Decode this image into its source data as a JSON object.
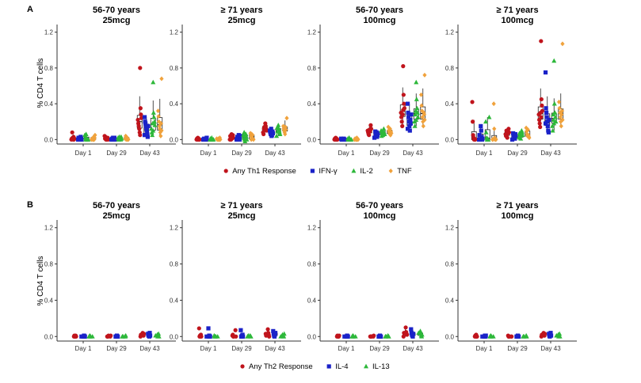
{
  "chart_data": [
    {
      "panel": "A",
      "type": "scatter",
      "ylabel": "% CD4 T cells",
      "ylim": [
        -0.05,
        1.25
      ],
      "yticks": [
        0.0,
        0.4,
        0.8,
        1.2
      ],
      "ytick_labels": [
        "0.0",
        "0.4",
        "0.8",
        "1.2"
      ],
      "categories": [
        "Day 1",
        "Day 29",
        "Day 43"
      ],
      "legend_position": "bottom",
      "legend": [
        {
          "name": "Any Th1 Response",
          "marker": "circle",
          "color": "#c0141c"
        },
        {
          "name": "IFN-γ",
          "marker": "square",
          "color": "#1a22c8"
        },
        {
          "name": "IL-2",
          "marker": "triangle",
          "color": "#2db83a"
        },
        {
          "name": "TNF",
          "marker": "diamond",
          "color": "#f0a23c"
        }
      ],
      "facets": [
        {
          "title1": "56-70 years",
          "title2": "25mcg",
          "values": [
            [
              [
                0.0,
                0.01,
                0.08,
                0.02,
                0.0,
                0.03,
                0.0,
                0.01
              ],
              [
                0.0,
                0.0,
                0.03,
                0.01,
                0.0,
                0.0,
                0.02,
                0.0
              ],
              [
                0.0,
                0.05,
                0.02,
                0.0,
                0.06,
                0.01,
                0.0,
                0.0
              ],
              [
                0.0,
                0.0,
                0.03,
                0.0,
                0.02,
                0.05,
                0.0,
                0.01
              ]
            ],
            [
              [
                0.02,
                0.0,
                0.04,
                0.01,
                0.03,
                0.0,
                0.02,
                0.0
              ],
              [
                0.01,
                0.0,
                0.02,
                0.0,
                0.01,
                0.02,
                0.0,
                0.0
              ],
              [
                0.0,
                0.03,
                0.01,
                0.02,
                0.0,
                0.0,
                0.03,
                0.01
              ],
              [
                0.01,
                0.04,
                0.0,
                0.03,
                0.02,
                0.0,
                0.01,
                0.0
              ]
            ],
            [
              [
                0.8,
                0.35,
                0.28,
                0.24,
                0.22,
                0.18,
                0.15,
                0.12,
                0.08,
                0.05
              ],
              [
                0.25,
                0.2,
                0.18,
                0.15,
                0.12,
                0.1,
                0.06,
                0.03,
                0.15,
                0.05
              ],
              [
                0.64,
                0.3,
                0.25,
                0.2,
                0.16,
                0.12,
                0.08,
                0.05,
                0.18,
                0.1
              ],
              [
                0.68,
                0.32,
                0.26,
                0.2,
                0.15,
                0.12,
                0.08,
                0.04,
                0.18,
                0.1
              ]
            ]
          ]
        },
        {
          "title1": "≥ 71 years",
          "title2": "25mcg",
          "values": [
            [
              [
                0.0,
                0.01,
                0.0,
                0.02,
                0.0,
                0.01,
                0.0,
                0.0
              ],
              [
                0.0,
                0.0,
                0.01,
                0.0,
                0.02,
                0.0,
                0.0,
                0.01
              ],
              [
                0.0,
                0.0,
                0.01,
                0.0,
                0.0,
                0.02,
                0.0,
                0.0
              ],
              [
                0.0,
                0.01,
                0.0,
                0.0,
                0.02,
                0.0,
                0.01,
                0.0
              ]
            ],
            [
              [
                0.05,
                0.02,
                0.0,
                0.04,
                0.03,
                0.0,
                0.06,
                0.01
              ],
              [
                0.03,
                0.0,
                0.02,
                0.05,
                0.01,
                0.0,
                0.04,
                0.0
              ],
              [
                0.06,
                0.03,
                0.0,
                0.05,
                0.02,
                0.08,
                0.0,
                -0.02
              ],
              [
                0.07,
                0.04,
                0.0,
                0.06,
                0.02,
                0.05,
                0.01,
                0.0
              ]
            ],
            [
              [
                0.18,
                0.15,
                0.12,
                0.1,
                0.08,
                0.06,
                0.12,
                0.14
              ],
              [
                0.1,
                0.08,
                0.06,
                0.12,
                0.04,
                0.05,
                0.09,
                0.07
              ],
              [
                0.16,
                0.12,
                0.1,
                0.08,
                0.06,
                0.04,
                0.13,
                0.09
              ],
              [
                0.24,
                0.15,
                0.12,
                0.1,
                0.08,
                0.06,
                0.14,
                0.11
              ]
            ]
          ]
        },
        {
          "title1": "56-70 years",
          "title2": "100mcg",
          "values": [
            [
              [
                0.0,
                0.01,
                0.0,
                0.02,
                0.0,
                0.01,
                0.0,
                0.0
              ],
              [
                0.0,
                0.0,
                0.01,
                0.0,
                0.0,
                0.01,
                0.0,
                0.0
              ],
              [
                0.0,
                0.01,
                0.0,
                0.0,
                0.02,
                0.0,
                0.0,
                0.0
              ],
              [
                0.0,
                0.0,
                0.02,
                0.0,
                0.01,
                0.0,
                0.0,
                0.01
              ]
            ],
            [
              [
                0.16,
                0.12,
                0.1,
                0.08,
                0.06,
                0.05,
                0.11,
                0.09
              ],
              [
                0.09,
                0.06,
                0.04,
                0.08,
                0.03,
                0.05,
                0.07,
                0.02
              ],
              [
                0.12,
                0.08,
                0.06,
                0.1,
                0.04,
                0.07,
                0.09,
                0.05
              ],
              [
                0.14,
                0.1,
                0.08,
                0.06,
                0.12,
                0.05,
                0.09,
                0.07
              ]
            ],
            [
              [
                0.82,
                0.5,
                0.4,
                0.35,
                0.3,
                0.25,
                0.2,
                0.15,
                0.28,
                0.33
              ],
              [
                0.4,
                0.3,
                0.25,
                0.2,
                0.15,
                0.1,
                0.22,
                0.18,
                0.28,
                0.12
              ],
              [
                0.64,
                0.45,
                0.35,
                0.3,
                0.25,
                0.2,
                0.15,
                0.28,
                0.32,
                0.22
              ],
              [
                0.72,
                0.5,
                0.38,
                0.32,
                0.25,
                0.2,
                0.15,
                0.3,
                0.28,
                0.22
              ]
            ]
          ]
        },
        {
          "title1": "≥ 71 years",
          "title2": "100mcg",
          "values": [
            [
              [
                0.42,
                0.2,
                0.05,
                0.02,
                0.0,
                0.01,
                0.0,
                0.0
              ],
              [
                0.15,
                0.1,
                0.03,
                0.0,
                0.01,
                0.0,
                0.05,
                0.0
              ],
              [
                0.25,
                0.2,
                0.08,
                0.02,
                0.0,
                0.01,
                0.0,
                0.0
              ],
              [
                0.4,
                0.12,
                0.02,
                0.0,
                0.01,
                0.0,
                0.0,
                0.0
              ]
            ],
            [
              [
                0.12,
                0.08,
                0.06,
                0.04,
                0.1,
                0.05,
                0.02,
                0.07
              ],
              [
                0.07,
                0.05,
                0.02,
                0.04,
                0.01,
                0.06,
                0.03,
                0.0
              ],
              [
                0.1,
                0.08,
                0.05,
                0.03,
                0.07,
                0.02,
                0.04,
                0.01
              ],
              [
                0.13,
                0.09,
                0.06,
                0.04,
                0.11,
                0.05,
                0.03,
                0.02
              ]
            ],
            [
              [
                1.1,
                0.45,
                0.38,
                0.32,
                0.28,
                0.22,
                0.18,
                0.14,
                0.3,
                0.25
              ],
              [
                0.75,
                0.35,
                0.3,
                0.25,
                0.2,
                0.15,
                0.1,
                0.08,
                0.22,
                0.18
              ],
              [
                0.88,
                0.4,
                0.3,
                0.25,
                0.2,
                0.15,
                0.1,
                0.28,
                0.22,
                0.18
              ],
              [
                1.07,
                0.42,
                0.35,
                0.3,
                0.25,
                0.2,
                0.15,
                0.28,
                0.32,
                0.22
              ]
            ]
          ]
        }
      ]
    },
    {
      "panel": "B",
      "type": "scatter",
      "ylabel": "% CD4 T cells",
      "ylim": [
        -0.05,
        1.25
      ],
      "yticks": [
        0.0,
        0.4,
        0.8,
        1.2
      ],
      "ytick_labels": [
        "0.0",
        "0.4",
        "0.8",
        "1.2"
      ],
      "categories": [
        "Day 1",
        "Day 29",
        "Day 43"
      ],
      "legend_position": "bottom",
      "legend": [
        {
          "name": "Any Th2 Response",
          "marker": "circle",
          "color": "#c0141c"
        },
        {
          "name": "IL-4",
          "marker": "square",
          "color": "#1a22c8"
        },
        {
          "name": "IL-13",
          "marker": "triangle",
          "color": "#2db83a"
        }
      ],
      "facets": [
        {
          "title1": "56-70 years",
          "title2": "25mcg",
          "values": [
            [
              [
                0.0,
                0.01,
                0.0,
                0.0,
                0.01,
                0.0
              ],
              [
                0.0,
                0.0,
                0.01,
                0.0,
                0.0,
                0.0
              ],
              [
                0.0,
                0.0,
                0.0,
                0.01,
                0.0,
                0.0
              ]
            ],
            [
              [
                0.0,
                0.01,
                0.0,
                0.0,
                0.0,
                0.01
              ],
              [
                0.0,
                0.0,
                0.0,
                0.01,
                0.0,
                0.0
              ],
              [
                0.0,
                0.0,
                0.01,
                0.0,
                0.0,
                0.0
              ]
            ],
            [
              [
                0.04,
                0.02,
                0.01,
                0.03,
                0.0,
                0.02
              ],
              [
                0.03,
                0.01,
                0.02,
                0.0,
                0.04,
                0.01
              ],
              [
                0.02,
                0.0,
                0.01,
                0.03,
                0.0,
                0.01
              ]
            ]
          ]
        },
        {
          "title1": "≥ 71 years",
          "title2": "25mcg",
          "values": [
            [
              [
                0.09,
                0.0,
                0.01,
                0.0,
                0.02,
                0.0
              ],
              [
                0.09,
                0.0,
                0.01,
                0.0,
                0.0,
                0.0
              ],
              [
                0.0,
                0.01,
                0.0,
                0.0,
                0.0,
                0.0
              ]
            ],
            [
              [
                0.07,
                0.0,
                0.01,
                0.02,
                0.0,
                0.0
              ],
              [
                0.07,
                0.0,
                0.0,
                0.01,
                0.02,
                0.0
              ],
              [
                0.01,
                0.0,
                0.0,
                0.0,
                0.0,
                0.01
              ]
            ],
            [
              [
                0.08,
                0.04,
                0.02,
                0.0,
                0.03,
                0.01
              ],
              [
                0.06,
                0.03,
                0.01,
                0.0,
                0.02,
                0.04
              ],
              [
                0.02,
                0.0,
                0.01,
                0.0,
                0.03,
                0.0
              ]
            ]
          ]
        },
        {
          "title1": "56-70 years",
          "title2": "100mcg",
          "values": [
            [
              [
                0.0,
                0.01,
                0.0,
                0.0,
                0.0,
                0.01
              ],
              [
                0.0,
                0.0,
                0.01,
                0.0,
                0.0,
                0.0
              ],
              [
                0.0,
                0.0,
                0.0,
                0.01,
                0.0,
                0.0
              ]
            ],
            [
              [
                0.0,
                0.01,
                0.0,
                0.0,
                0.0,
                0.0
              ],
              [
                0.0,
                0.0,
                0.0,
                0.01,
                0.0,
                0.0
              ],
              [
                0.01,
                0.0,
                0.0,
                0.0,
                0.0,
                0.0
              ]
            ],
            [
              [
                0.1,
                0.05,
                0.03,
                0.02,
                0.0,
                0.04
              ],
              [
                0.08,
                0.04,
                0.02,
                0.01,
                0.0,
                0.03
              ],
              [
                0.06,
                0.03,
                0.01,
                0.0,
                0.02,
                0.04
              ]
            ]
          ]
        },
        {
          "title1": "≥ 71 years",
          "title2": "100mcg",
          "values": [
            [
              [
                0.0,
                0.01,
                0.0,
                0.02,
                0.0,
                0.0
              ],
              [
                0.0,
                0.0,
                0.01,
                0.0,
                0.01,
                0.0
              ],
              [
                0.0,
                0.0,
                0.0,
                0.01,
                0.0,
                0.0
              ]
            ],
            [
              [
                0.0,
                0.0,
                0.01,
                0.0,
                0.0,
                0.0
              ],
              [
                0.0,
                0.0,
                0.0,
                0.01,
                0.0,
                0.0
              ],
              [
                0.0,
                0.01,
                0.0,
                0.0,
                0.0,
                0.0
              ]
            ],
            [
              [
                0.04,
                0.02,
                0.01,
                0.03,
                0.0,
                0.02
              ],
              [
                0.03,
                0.01,
                0.0,
                0.02,
                0.04,
                0.01
              ],
              [
                0.02,
                0.0,
                0.01,
                0.03,
                0.0,
                0.01
              ]
            ]
          ]
        }
      ]
    }
  ]
}
